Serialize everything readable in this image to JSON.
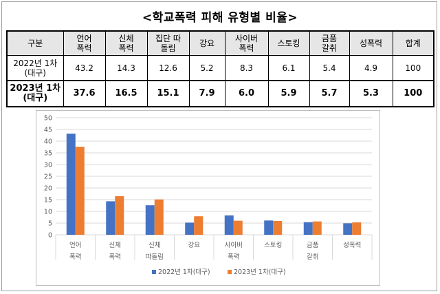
{
  "title": "<학교폭력 피해 유형별 비율>",
  "table": {
    "headers": [
      "구분",
      "언어\n폭력",
      "신체\n폭력",
      "집단 따\n돌림",
      "강요",
      "사이버\n폭력",
      "스토킹",
      "금품\n갈취",
      "성폭력",
      "합계"
    ],
    "rows": [
      {
        "label": "2022년 1차\n(대구)",
        "values": [
          "43.2",
          "14.3",
          "12.6",
          "5.2",
          "8.3",
          "6.1",
          "5.4",
          "4.9",
          "100"
        ]
      },
      {
        "label": "2023년 1차\n(대구)",
        "values": [
          "37.6",
          "16.5",
          "15.1",
          "7.9",
          "6.0",
          "5.9",
          "5.7",
          "5.3",
          "100"
        ]
      }
    ]
  },
  "chart_data": {
    "type": "bar",
    "categories": [
      "언어\n폭력",
      "신체\n폭력",
      "신체\n따돌림",
      "강요",
      "사이버\n폭력",
      "스토킹",
      "금품\n갈취",
      "성폭력"
    ],
    "series": [
      {
        "name": "2022년 1차(대구)",
        "values": [
          43.2,
          14.3,
          12.6,
          5.2,
          8.3,
          6.1,
          5.4,
          4.9
        ],
        "color": "#4472C4"
      },
      {
        "name": "2023년 1차(대구)",
        "values": [
          37.6,
          16.5,
          15.1,
          7.9,
          6.0,
          5.9,
          5.7,
          5.3
        ],
        "color": "#ED7D31"
      }
    ],
    "ylim": [
      0,
      50
    ],
    "yticks": [
      0,
      5,
      10,
      15,
      20,
      25,
      30,
      35,
      40,
      45,
      50
    ],
    "grid": true,
    "legend": "bottom"
  }
}
